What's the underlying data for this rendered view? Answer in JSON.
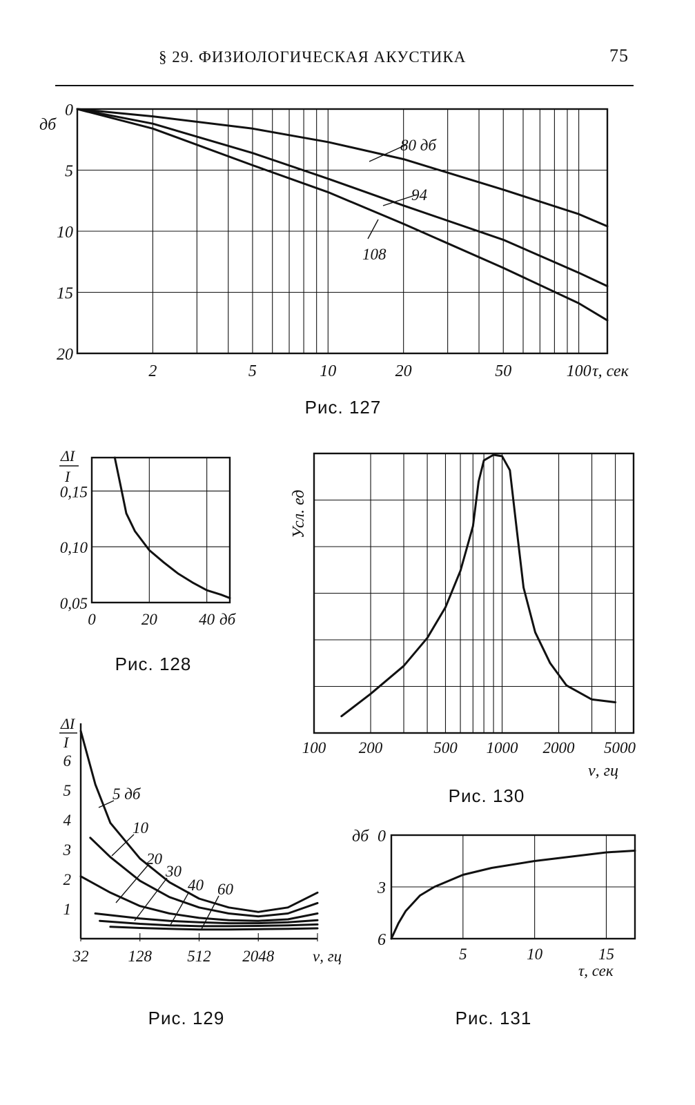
{
  "header": {
    "section": "§ 29. ФИЗИОЛОГИЧЕСКАЯ АКУСТИКА",
    "page_number": "75"
  },
  "chart_data": [
    {
      "id": "fig127",
      "type": "line",
      "caption": "Рис. 127",
      "ylabel": "дб",
      "xlabel": "τ, сек",
      "x_scale": "log",
      "y_inverted": true,
      "xlim": [
        1,
        130
      ],
      "ylim": [
        0,
        20
      ],
      "x_ticks": [
        2,
        5,
        10,
        20,
        50,
        100
      ],
      "y_ticks": [
        0,
        5,
        10,
        15,
        20
      ],
      "x_grid": [
        1,
        2,
        3,
        4,
        5,
        6,
        7,
        8,
        9,
        10,
        20,
        30,
        40,
        50,
        60,
        70,
        80,
        90,
        100,
        130
      ],
      "grid": true,
      "series": [
        {
          "name": "80 дб",
          "points": [
            [
              1,
              0
            ],
            [
              2,
              0.6
            ],
            [
              5,
              1.6
            ],
            [
              10,
              2.7
            ],
            [
              20,
              4.1
            ],
            [
              50,
              6.6
            ],
            [
              100,
              8.6
            ],
            [
              130,
              9.6
            ]
          ]
        },
        {
          "name": "94",
          "points": [
            [
              1,
              0
            ],
            [
              2,
              1.2
            ],
            [
              5,
              3.6
            ],
            [
              10,
              5.7
            ],
            [
              20,
              7.9
            ],
            [
              50,
              10.7
            ],
            [
              100,
              13.4
            ],
            [
              130,
              14.5
            ]
          ]
        },
        {
          "name": "108",
          "points": [
            [
              1,
              0
            ],
            [
              2,
              1.6
            ],
            [
              5,
              4.6
            ],
            [
              10,
              6.8
            ],
            [
              20,
              9.4
            ],
            [
              50,
              13.0
            ],
            [
              100,
              15.9
            ],
            [
              130,
              17.3
            ]
          ]
        }
      ]
    },
    {
      "id": "fig128",
      "type": "line",
      "caption": "Рис. 128",
      "ylabel_top": "ΔI",
      "ylabel_bottom": "I",
      "xlabel": "дб",
      "xlim": [
        0,
        48
      ],
      "ylim": [
        0.05,
        0.18
      ],
      "x_ticks": [
        "0",
        "20",
        "40"
      ],
      "y_ticks": [
        "0,05",
        "0,10",
        "0,15"
      ],
      "grid": true,
      "series": [
        {
          "name": "",
          "points": [
            [
              8,
              0.18
            ],
            [
              10,
              0.155
            ],
            [
              12,
              0.13
            ],
            [
              15,
              0.114
            ],
            [
              20,
              0.097
            ],
            [
              25,
              0.086
            ],
            [
              30,
              0.076
            ],
            [
              35,
              0.068
            ],
            [
              40,
              0.061
            ],
            [
              45,
              0.057
            ],
            [
              48,
              0.054
            ]
          ]
        }
      ]
    },
    {
      "id": "fig129",
      "type": "line",
      "caption": "Рис. 129",
      "ylabel_top": "ΔI",
      "ylabel_bottom": "I",
      "xlabel": "ν, гц",
      "x_scale": "log2",
      "x_ticks": [
        "32",
        "128",
        "512",
        "2048"
      ],
      "y_ticks": [
        "1",
        "2",
        "3",
        "4",
        "5",
        "6"
      ],
      "grid": false,
      "series": [
        {
          "name": "5 дб",
          "points": [
            [
              32,
              7
            ],
            [
              45,
              5.2
            ],
            [
              64,
              3.9
            ],
            [
              128,
              2.7
            ],
            [
              256,
              1.9
            ],
            [
              512,
              1.35
            ],
            [
              1024,
              1.05
            ],
            [
              2048,
              0.9
            ],
            [
              4096,
              1.05
            ],
            [
              8192,
              1.55
            ]
          ]
        },
        {
          "name": "10",
          "points": [
            [
              40,
              3.4
            ],
            [
              64,
              2.75
            ],
            [
              128,
              1.95
            ],
            [
              256,
              1.4
            ],
            [
              512,
              1.05
            ],
            [
              1024,
              0.85
            ],
            [
              2048,
              0.75
            ],
            [
              4096,
              0.85
            ],
            [
              8192,
              1.2
            ]
          ]
        },
        {
          "name": "20",
          "points": [
            [
              32,
              2.1
            ],
            [
              64,
              1.55
            ],
            [
              128,
              1.1
            ],
            [
              256,
              0.85
            ],
            [
              512,
              0.7
            ],
            [
              1024,
              0.62
            ],
            [
              2048,
              0.6
            ],
            [
              4096,
              0.65
            ],
            [
              8192,
              0.85
            ]
          ]
        },
        {
          "name": "30",
          "points": [
            [
              45,
              0.85
            ],
            [
              128,
              0.68
            ],
            [
              256,
              0.6
            ],
            [
              512,
              0.55
            ],
            [
              1024,
              0.52
            ],
            [
              2048,
              0.52
            ],
            [
              4096,
              0.55
            ],
            [
              8192,
              0.62
            ]
          ]
        },
        {
          "name": "40",
          "points": [
            [
              50,
              0.6
            ],
            [
              128,
              0.5
            ],
            [
              256,
              0.45
            ],
            [
              512,
              0.42
            ],
            [
              1024,
              0.42
            ],
            [
              2048,
              0.43
            ],
            [
              4096,
              0.45
            ],
            [
              8192,
              0.48
            ]
          ]
        },
        {
          "name": "60",
          "points": [
            [
              64,
              0.4
            ],
            [
              128,
              0.36
            ],
            [
              256,
              0.33
            ],
            [
              512,
              0.31
            ],
            [
              1024,
              0.31
            ],
            [
              2048,
              0.32
            ],
            [
              4096,
              0.33
            ],
            [
              8192,
              0.35
            ]
          ]
        }
      ]
    },
    {
      "id": "fig130",
      "type": "line",
      "caption": "Рис. 130",
      "ylabel": "Усл. ед",
      "xlabel": "ν, гц",
      "x_scale": "log",
      "x_ticks": [
        100,
        200,
        500,
        1000,
        2000,
        5000
      ],
      "x_grid": [
        100,
        200,
        300,
        400,
        500,
        600,
        700,
        800,
        900,
        1000,
        2000,
        3000,
        4000,
        5000
      ],
      "y_divisions": 6,
      "grid": true,
      "series": [
        {
          "name": "",
          "points": [
            [
              140,
              0.06
            ],
            [
              200,
              0.14
            ],
            [
              300,
              0.24
            ],
            [
              400,
              0.34
            ],
            [
              500,
              0.45
            ],
            [
              600,
              0.58
            ],
            [
              700,
              0.74
            ],
            [
              750,
              0.9
            ],
            [
              800,
              0.975
            ],
            [
              900,
              0.995
            ],
            [
              1000,
              0.99
            ],
            [
              1100,
              0.94
            ],
            [
              1200,
              0.72
            ],
            [
              1300,
              0.52
            ],
            [
              1500,
              0.36
            ],
            [
              1800,
              0.25
            ],
            [
              2200,
              0.17
            ],
            [
              3000,
              0.12
            ],
            [
              4000,
              0.11
            ]
          ]
        }
      ]
    },
    {
      "id": "fig131",
      "type": "line",
      "caption": "Рис. 131",
      "ylabel": "дб",
      "xlabel": "τ, сек",
      "y_inverted": true,
      "xlim": [
        0,
        17
      ],
      "ylim": [
        0,
        6
      ],
      "x_ticks": [
        5,
        10,
        15
      ],
      "y_ticks": [
        0,
        3,
        6
      ],
      "grid": true,
      "series": [
        {
          "name": "",
          "points": [
            [
              0,
              6
            ],
            [
              0.5,
              5.1
            ],
            [
              1,
              4.4
            ],
            [
              2,
              3.5
            ],
            [
              3,
              3.0
            ],
            [
              5,
              2.3
            ],
            [
              7,
              1.9
            ],
            [
              10,
              1.5
            ],
            [
              13,
              1.2
            ],
            [
              15,
              1.0
            ],
            [
              17,
              0.9
            ]
          ]
        }
      ]
    }
  ]
}
